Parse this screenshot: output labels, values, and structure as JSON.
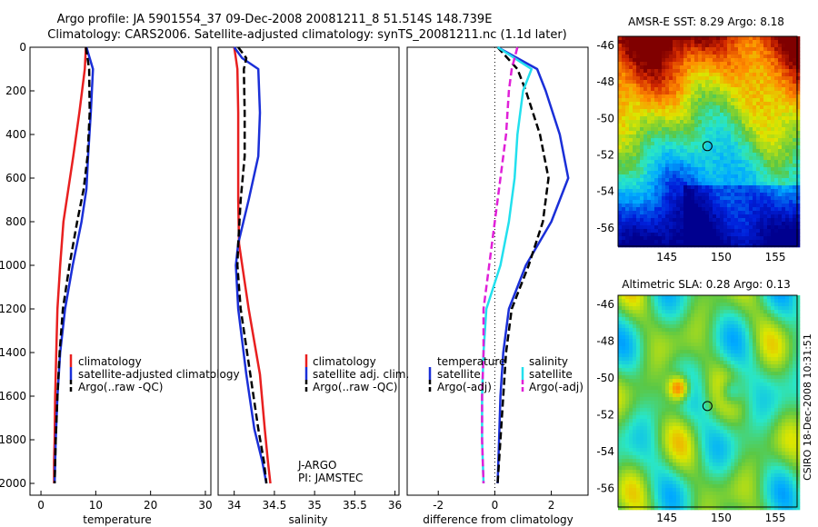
{
  "header": {
    "line1": "Argo profile: JA 5901554_37 09-Dec-2008 20081211_8 51.514S 148.739E",
    "line2": "Climatology: CARS2006. Satellite-adjusted climatology: synTS_20081211.nc (1.1d later)"
  },
  "colors": {
    "climatology": "#e81f1f",
    "satellite": "#1a2fd8",
    "argo": "#000000",
    "satellite_salinity_diff": "#22e0ee",
    "argo_salinity_diff": "#e020d8"
  },
  "chart_data": [
    {
      "type": "line",
      "panel": "temperature",
      "xlabel": "temperature",
      "xlim": [
        -2,
        31
      ],
      "ylim": [
        2000,
        0
      ],
      "xticks": [
        "0",
        "10",
        "20",
        "30"
      ],
      "yticks": [
        "0",
        "200",
        "400",
        "600",
        "800",
        "1000",
        "1200",
        "1400",
        "1600",
        "1800",
        "2000"
      ],
      "legend": [
        "climatology",
        "satellite-adjusted climatology",
        "Argo(..raw -QC)"
      ],
      "legend_placement": "lower-right",
      "series": [
        {
          "name": "climatology",
          "style": "solid",
          "x": [
            8.2,
            8.0,
            7.0,
            5.9,
            5.0,
            4.1,
            3.5,
            3.0,
            2.8,
            2.6,
            2.5,
            2.4,
            2.4
          ],
          "y": [
            0,
            100,
            300,
            500,
            650,
            800,
            1000,
            1200,
            1400,
            1600,
            1800,
            1900,
            2000
          ]
        },
        {
          "name": "satellite-adjusted climatology",
          "style": "solid",
          "x": [
            8.3,
            9.5,
            9.1,
            8.6,
            8.3,
            7.4,
            5.8,
            4.4,
            3.5,
            3.0,
            2.7,
            2.6,
            2.5
          ],
          "y": [
            0,
            100,
            300,
            500,
            650,
            800,
            1000,
            1200,
            1400,
            1600,
            1800,
            1900,
            2000
          ]
        },
        {
          "name": "Argo(..raw -QC)",
          "style": "dashed",
          "x": [
            8.2,
            8.8,
            8.9,
            8.5,
            7.8,
            6.6,
            5.2,
            4.0,
            3.4,
            3.0,
            2.7,
            2.6,
            2.5
          ],
          "y": [
            0,
            100,
            300,
            500,
            650,
            800,
            1000,
            1200,
            1400,
            1600,
            1800,
            1900,
            2000
          ]
        }
      ]
    },
    {
      "type": "line",
      "panel": "salinity",
      "xlabel": "salinity",
      "xlim": [
        33.8,
        36.05
      ],
      "ylim": [
        2000,
        0
      ],
      "xticks": [
        "34",
        "34.5",
        "35",
        "35.5",
        "36"
      ],
      "yticks": [],
      "legend": [
        "climatology",
        "satellite adj. clim.",
        "Argo(..raw -QC)"
      ],
      "legend_placement": "lower-right",
      "annotations": [
        "J-ARGO",
        "PI: JAMSTEC"
      ],
      "series": [
        {
          "name": "climatology",
          "style": "solid",
          "x": [
            34.0,
            34.02,
            34.04,
            34.05,
            34.05,
            34.05,
            34.06,
            34.1,
            34.18,
            34.32,
            34.38,
            34.42,
            34.45
          ],
          "y": [
            0,
            50,
            100,
            300,
            500,
            700,
            900,
            1000,
            1200,
            1500,
            1750,
            1900,
            2000
          ]
        },
        {
          "name": "satellite adj. clim.",
          "style": "solid",
          "x": [
            34.0,
            34.1,
            34.3,
            34.32,
            34.3,
            34.18,
            34.05,
            34.02,
            34.05,
            34.15,
            34.25,
            34.35,
            34.4
          ],
          "y": [
            0,
            50,
            100,
            300,
            500,
            700,
            900,
            1000,
            1200,
            1500,
            1750,
            1900,
            2000
          ]
        },
        {
          "name": "Argo(..raw -QC)",
          "style": "dashed",
          "x": [
            34.05,
            34.15,
            34.12,
            34.13,
            34.13,
            34.08,
            34.05,
            34.04,
            34.08,
            34.2,
            34.3,
            34.37,
            34.4
          ],
          "y": [
            0,
            50,
            100,
            300,
            500,
            700,
            900,
            1000,
            1200,
            1500,
            1750,
            1900,
            2000
          ]
        }
      ]
    },
    {
      "type": "line",
      "panel": "difference from climatology",
      "xlabel": "difference from climatology",
      "xlim": [
        -3.1,
        3.3
      ],
      "ylim": [
        2000,
        0
      ],
      "xticks": [
        "-2",
        "0",
        "2"
      ],
      "yticks": [],
      "zero_line": "dotted",
      "legend": [
        "temperature",
        "satellite",
        "Argo(-adj)",
        "salinity",
        "satellite",
        "Argo(-adj)"
      ],
      "legend_placement": "lower-center",
      "series": [
        {
          "name": "temperature satellite",
          "style": "solid",
          "x": [
            0.1,
            1.5,
            1.8,
            2.3,
            2.6,
            2.0,
            1.1,
            0.5,
            0.3,
            0.2,
            0.15,
            0.1
          ],
          "y": [
            0,
            100,
            200,
            400,
            600,
            800,
            1000,
            1200,
            1400,
            1600,
            1800,
            2000
          ]
        },
        {
          "name": "temperature Argo(-adj)",
          "style": "dashed",
          "x": [
            0.1,
            0.8,
            1.1,
            1.6,
            1.9,
            1.7,
            1.2,
            0.6,
            0.4,
            0.3,
            0.2,
            0.1
          ],
          "y": [
            0,
            100,
            200,
            400,
            600,
            800,
            1000,
            1200,
            1400,
            1600,
            1800,
            2000
          ]
        },
        {
          "name": "salinity satellite",
          "style": "solid",
          "x": [
            0.1,
            1.3,
            1.0,
            0.8,
            0.7,
            0.5,
            0.2,
            -0.3,
            -0.4,
            -0.45,
            -0.45,
            -0.4
          ],
          "y": [
            0,
            100,
            200,
            400,
            600,
            800,
            1000,
            1200,
            1400,
            1600,
            1800,
            2000
          ]
        },
        {
          "name": "salinity Argo(-adj)",
          "style": "dashed",
          "x": [
            0.8,
            0.6,
            0.5,
            0.4,
            0.2,
            0.0,
            -0.2,
            -0.4,
            -0.4,
            -0.45,
            -0.45,
            -0.4
          ],
          "y": [
            0,
            100,
            200,
            400,
            600,
            800,
            1000,
            1200,
            1400,
            1600,
            1800,
            2000
          ]
        }
      ]
    },
    {
      "type": "heatmap",
      "panel": "sst map",
      "title": "AMSR-E SST: 8.29 Argo: 8.18",
      "xticks": [
        "145",
        "150",
        "155"
      ],
      "yticks": [
        "-46",
        "-48",
        "-50",
        "-52",
        "-54",
        "-56"
      ],
      "xlim": [
        140.5,
        157
      ],
      "ylim": [
        -57,
        -45.5
      ],
      "marker": {
        "lon": 148.739,
        "lat": -51.514
      }
    },
    {
      "type": "heatmap",
      "panel": "sla map",
      "title": "Altimetric SLA: 0.28 Argo: 0.13",
      "xticks": [
        "145",
        "150",
        "155"
      ],
      "yticks": [
        "-46",
        "-48",
        "-50",
        "-52",
        "-54",
        "-56"
      ],
      "xlim": [
        140.5,
        157
      ],
      "ylim": [
        -57,
        -45.5
      ],
      "marker": {
        "lon": 148.739,
        "lat": -51.514
      }
    }
  ],
  "legends": {
    "temperature": [
      "climatology",
      "satellite-adjusted climatology",
      "Argo(..raw -QC)"
    ],
    "salinity": [
      "climatology",
      "satellite adj. clim.",
      "Argo(..raw -QC)"
    ],
    "difference": {
      "temp_header": "temperature",
      "sal_header": "salinity",
      "items": [
        "satellite",
        "Argo(-adj)",
        "satellite",
        "Argo(-adj)"
      ]
    }
  },
  "annotations": {
    "line1": "J-ARGO",
    "line2": "PI: JAMSTEC"
  },
  "side_label": "CSIRO 18-Dec-2008 10:31:51"
}
